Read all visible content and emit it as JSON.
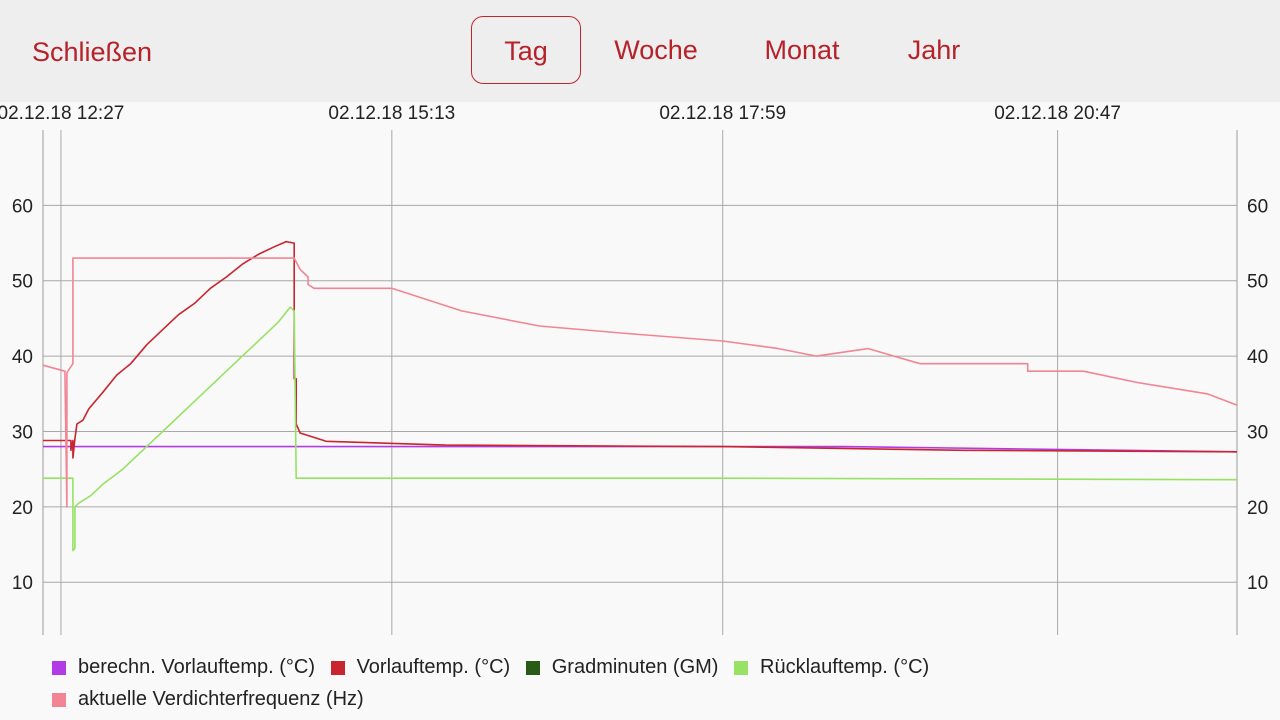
{
  "toolbar": {
    "close_label": "Schließen",
    "tabs": [
      {
        "label": "Tag",
        "active": true
      },
      {
        "label": "Woche",
        "active": false
      },
      {
        "label": "Monat",
        "active": false
      },
      {
        "label": "Jahr",
        "active": false
      }
    ]
  },
  "colors": {
    "accent": "#b5222a",
    "series_berechn": "#b13ce6",
    "series_vorlauf": "#c9252f",
    "series_gradminuten": "#2a5a17",
    "series_ruecklauf": "#97e264",
    "series_verdichter": "#f28595"
  },
  "chart_data": {
    "type": "line",
    "x_tick_labels": [
      "02.12.18 12:27",
      "02.12.18 15:13",
      "02.12.18 17:59",
      "02.12.18 20:47"
    ],
    "y_ticks": [
      10,
      20,
      30,
      40,
      50,
      60
    ],
    "ylim": [
      3,
      70
    ],
    "xlim": [
      "02.12.18 12:18",
      "02.12.18 22:17"
    ],
    "grid": true,
    "legend_position": "bottom",
    "series": [
      {
        "name": "berechn. Vorlauftemp. (°C)",
        "color_key": "series_berechn",
        "points": [
          [
            "02.12.18 12:18",
            28
          ],
          [
            "02.12.18 16:00",
            28
          ],
          [
            "02.12.18 19:00",
            28
          ],
          [
            "02.12.18 22:17",
            27.3
          ]
        ]
      },
      {
        "name": "Vorlauftemp. (°C)",
        "color_key": "series_vorlauf",
        "points": [
          [
            "02.12.18 12:18",
            28.8
          ],
          [
            "02.12.18 12:32",
            28.8
          ],
          [
            "02.12.18 12:32",
            27.5
          ],
          [
            "02.12.18 12:33",
            28.8
          ],
          [
            "02.12.18 12:33",
            26.5
          ],
          [
            "02.12.18 12:34",
            29
          ],
          [
            "02.12.18 12:35",
            31
          ],
          [
            "02.12.18 12:38",
            31.5
          ],
          [
            "02.12.18 12:41",
            33
          ],
          [
            "02.12.18 12:48",
            35.2
          ],
          [
            "02.12.18 12:55",
            37.5
          ],
          [
            "02.12.18 13:02",
            39
          ],
          [
            "02.12.18 13:10",
            41.5
          ],
          [
            "02.12.18 13:18",
            43.5
          ],
          [
            "02.12.18 13:26",
            45.5
          ],
          [
            "02.12.18 13:34",
            47
          ],
          [
            "02.12.18 13:42",
            49
          ],
          [
            "02.12.18 13:50",
            50.5
          ],
          [
            "02.12.18 13:58",
            52.2
          ],
          [
            "02.12.18 14:06",
            53.5
          ],
          [
            "02.12.18 14:14",
            54.5
          ],
          [
            "02.12.18 14:20",
            55.2
          ],
          [
            "02.12.18 14:24",
            55
          ],
          [
            "02.12.18 14:24",
            37
          ],
          [
            "02.12.18 14:25",
            37
          ],
          [
            "02.12.18 14:25",
            31
          ],
          [
            "02.12.18 14:27",
            29.8
          ],
          [
            "02.12.18 14:40",
            28.7
          ],
          [
            "02.12.18 15:40",
            28.2
          ],
          [
            "02.12.18 17:59",
            28
          ],
          [
            "02.12.18 20:00",
            27.5
          ],
          [
            "02.12.18 22:17",
            27.3
          ]
        ]
      },
      {
        "name": "Gradminuten (GM)",
        "color_key": "series_gradminuten",
        "points": []
      },
      {
        "name": "Rücklauftemp. (°C)",
        "color_key": "series_ruecklauf",
        "points": [
          [
            "02.12.18 12:18",
            23.8
          ],
          [
            "02.12.18 12:33",
            23.8
          ],
          [
            "02.12.18 12:33",
            14.2
          ],
          [
            "02.12.18 12:34",
            14.5
          ],
          [
            "02.12.18 12:34",
            20
          ],
          [
            "02.12.18 12:36",
            20.5
          ],
          [
            "02.12.18 12:42",
            21.5
          ],
          [
            "02.12.18 12:48",
            23
          ],
          [
            "02.12.18 12:58",
            25
          ],
          [
            "02.12.18 13:10",
            28
          ],
          [
            "02.12.18 13:22",
            31
          ],
          [
            "02.12.18 13:34",
            34
          ],
          [
            "02.12.18 13:46",
            37
          ],
          [
            "02.12.18 13:58",
            40
          ],
          [
            "02.12.18 14:08",
            42.5
          ],
          [
            "02.12.18 14:16",
            44.5
          ],
          [
            "02.12.18 14:22",
            46.5
          ],
          [
            "02.12.18 14:24",
            46
          ],
          [
            "02.12.18 14:25",
            23.8
          ],
          [
            "02.12.18 17:59",
            23.8
          ],
          [
            "02.12.18 22:17",
            23.6
          ]
        ]
      },
      {
        "name": "aktuelle Verdichterfrequenz (Hz)",
        "color_key": "series_verdichter",
        "points": [
          [
            "02.12.18 12:18",
            38.8
          ],
          [
            "02.12.18 12:29",
            38
          ],
          [
            "02.12.18 12:30",
            20
          ],
          [
            "02.12.18 12:30",
            37.8
          ],
          [
            "02.12.18 12:33",
            39
          ],
          [
            "02.12.18 12:33",
            53
          ],
          [
            "02.12.18 14:24",
            53
          ],
          [
            "02.12.18 14:27",
            51.5
          ],
          [
            "02.12.18 14:31",
            50.5
          ],
          [
            "02.12.18 14:31",
            49.5
          ],
          [
            "02.12.18 14:34",
            49
          ],
          [
            "02.12.18 15:13",
            49
          ],
          [
            "02.12.18 15:48",
            46
          ],
          [
            "02.12.18 16:27",
            44
          ],
          [
            "02.12.18 17:11",
            43
          ],
          [
            "02.12.18 17:59",
            42
          ],
          [
            "02.12.18 18:27",
            41
          ],
          [
            "02.12.18 18:46",
            40
          ],
          [
            "02.12.18 19:12",
            41
          ],
          [
            "02.12.18 19:38",
            39
          ],
          [
            "02.12.18 20:32",
            39
          ],
          [
            "02.12.18 20:32",
            38
          ],
          [
            "02.12.18 21:00",
            38
          ],
          [
            "02.12.18 21:27",
            36.5
          ],
          [
            "02.12.18 22:02",
            35
          ],
          [
            "02.12.18 22:17",
            33.5
          ]
        ]
      }
    ]
  }
}
